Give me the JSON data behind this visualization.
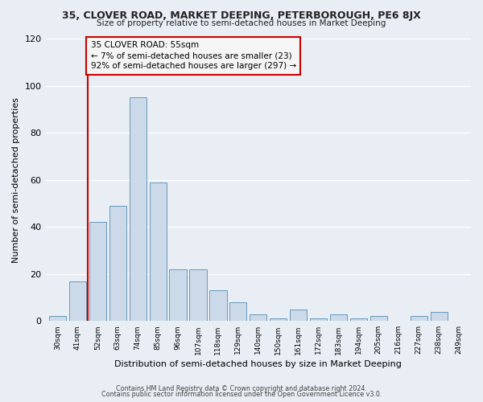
{
  "title1": "35, CLOVER ROAD, MARKET DEEPING, PETERBOROUGH, PE6 8JX",
  "title2": "Size of property relative to semi-detached houses in Market Deeping",
  "xlabel": "Distribution of semi-detached houses by size in Market Deeping",
  "ylabel": "Number of semi-detached properties",
  "bar_labels": [
    "30sqm",
    "41sqm",
    "52sqm",
    "63sqm",
    "74sqm",
    "85sqm",
    "96sqm",
    "107sqm",
    "118sqm",
    "129sqm",
    "140sqm",
    "150sqm",
    "161sqm",
    "172sqm",
    "183sqm",
    "194sqm",
    "205sqm",
    "216sqm",
    "227sqm",
    "238sqm",
    "249sqm"
  ],
  "bar_values": [
    2,
    17,
    42,
    49,
    95,
    59,
    22,
    22,
    13,
    8,
    3,
    1,
    5,
    1,
    3,
    1,
    2,
    0,
    2,
    4,
    0
  ],
  "bar_color": "#ccd9e8",
  "bar_edge_color": "#6699bb",
  "subject_line_color": "#cc0000",
  "subject_line_index": 2,
  "annotation_text": "35 CLOVER ROAD: 55sqm\n← 7% of semi-detached houses are smaller (23)\n92% of semi-detached houses are larger (297) →",
  "annotation_box_color": "#f5f5f5",
  "annotation_box_edge": "#cc0000",
  "ylim": [
    0,
    120
  ],
  "yticks": [
    0,
    20,
    40,
    60,
    80,
    100,
    120
  ],
  "footer1": "Contains HM Land Registry data © Crown copyright and database right 2024.",
  "footer2": "Contains public sector information licensed under the Open Government Licence v3.0.",
  "bg_color": "#e8eef4",
  "plot_bg_color": "#e8eef4",
  "grid_color": "#ffffff"
}
